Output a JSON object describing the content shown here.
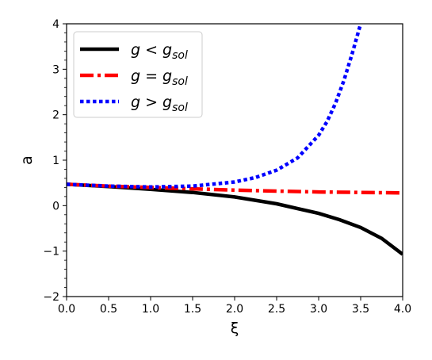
{
  "chart_data": {
    "type": "line",
    "xlabel": "ξ",
    "ylabel": "a",
    "xlim": [
      0.0,
      4.0
    ],
    "ylim": [
      -2,
      4
    ],
    "x_ticks": [
      "0.0",
      "0.5",
      "1.0",
      "1.5",
      "2.0",
      "2.5",
      "3.0",
      "3.5",
      "4.0"
    ],
    "y_ticks": [
      "−2",
      "−1",
      "0",
      "1",
      "2",
      "3",
      "4"
    ],
    "grid": false,
    "legend_position": "top-left",
    "series": [
      {
        "name": "g < g_sol",
        "label_main": "g < g",
        "label_sub": "sol",
        "color": "#000000",
        "style": "solid",
        "x": [
          0.0,
          0.5,
          1.0,
          1.5,
          2.0,
          2.5,
          3.0,
          3.25,
          3.5,
          3.75,
          4.0
        ],
        "y": [
          0.47,
          0.42,
          0.36,
          0.29,
          0.19,
          0.04,
          -0.17,
          -0.31,
          -0.48,
          -0.72,
          -1.07
        ]
      },
      {
        "name": "g = g_sol",
        "label_main": "g = g",
        "label_sub": "sol",
        "color": "#ff0000",
        "style": "dashdot",
        "x": [
          0.0,
          0.5,
          1.0,
          1.5,
          2.0,
          2.5,
          3.0,
          3.5,
          4.0
        ],
        "y": [
          0.47,
          0.43,
          0.4,
          0.37,
          0.34,
          0.32,
          0.3,
          0.29,
          0.28
        ]
      },
      {
        "name": "g > g_sol",
        "label_main": "g > g",
        "label_sub": "sol",
        "color": "#0000ff",
        "style": "dotted",
        "x": [
          0.0,
          0.5,
          1.0,
          1.5,
          2.0,
          2.25,
          2.5,
          2.75,
          3.0,
          3.1,
          3.2,
          3.3,
          3.4,
          3.5
        ],
        "y": [
          0.47,
          0.43,
          0.41,
          0.43,
          0.52,
          0.62,
          0.78,
          1.05,
          1.55,
          1.85,
          2.25,
          2.75,
          3.35,
          4.0
        ]
      }
    ]
  }
}
